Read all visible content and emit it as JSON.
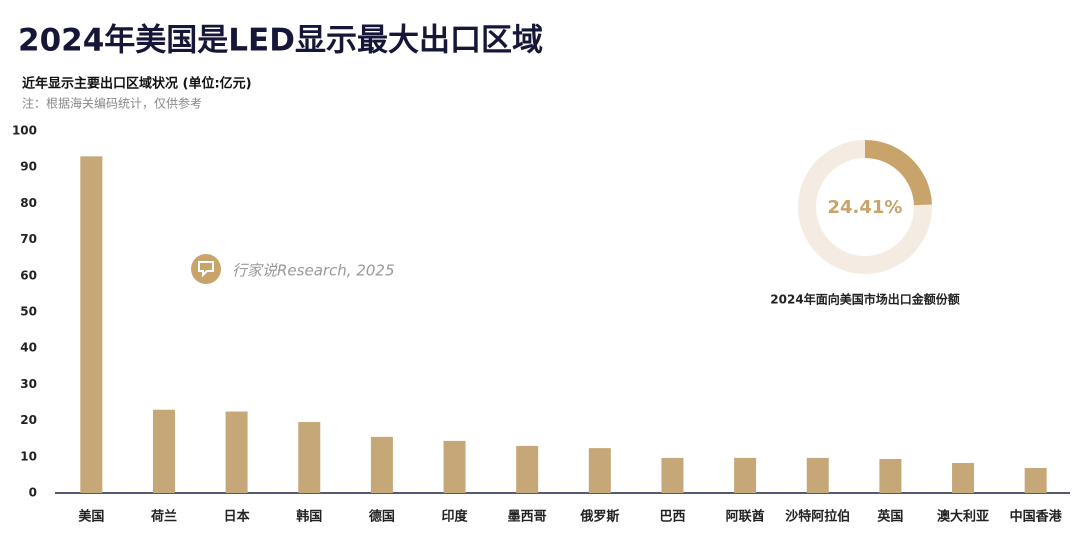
{
  "header": {
    "title": "2024年美国是LED显示最大出口区域",
    "subtitle": "近年显示主要出口区域状况 (单位:亿元)",
    "note": "注：根据海关编码统计，仅供参考",
    "watermark": "行家说Research, 2025"
  },
  "chart_data": [
    {
      "type": "bar",
      "categories": [
        "美国",
        "荷兰",
        "日本",
        "韩国",
        "德国",
        "印度",
        "墨西哥",
        "俄罗斯",
        "巴西",
        "阿联酋",
        "沙特阿拉伯",
        "英国",
        "澳大利亚",
        "中国香港"
      ],
      "values": [
        93,
        23,
        22.5,
        19.6,
        15.5,
        14.4,
        13,
        12.4,
        9.7,
        9.7,
        9.7,
        9.4,
        8.3,
        6.9
      ],
      "color": "#c6a878",
      "ylim": [
        0,
        100
      ],
      "yticks": [
        0,
        10,
        20,
        30,
        40,
        50,
        60,
        70,
        80,
        90,
        100
      ],
      "grid": false
    },
    {
      "type": "donut",
      "title": "2024年面向美国市场出口金额份额",
      "values": [
        24.41
      ],
      "value_labels": [
        "24.41%"
      ],
      "total": 100,
      "color": "#c9a46a",
      "track_color": "#f4ece2"
    }
  ]
}
